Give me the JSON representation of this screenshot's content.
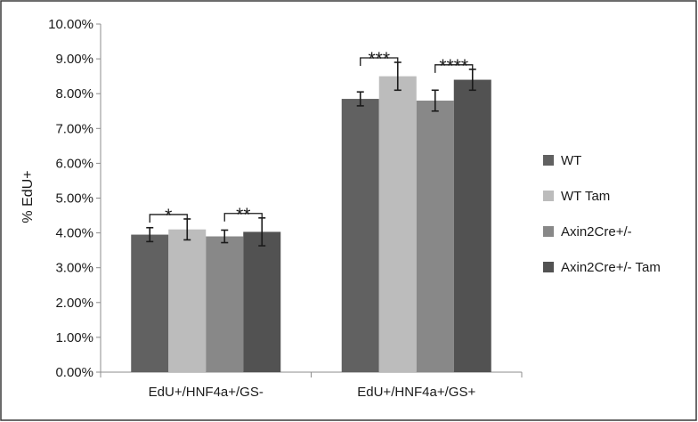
{
  "chart_data": {
    "type": "bar",
    "title": "",
    "xlabel": "",
    "ylabel": "% EdU+",
    "ylim": [
      0,
      10
    ],
    "y_unit": "%",
    "y_ticks": [
      "0.00%",
      "1.00%",
      "2.00%",
      "3.00%",
      "4.00%",
      "5.00%",
      "6.00%",
      "7.00%",
      "8.00%",
      "9.00%",
      "10.00%"
    ],
    "grid": false,
    "legend_position": "right",
    "categories": [
      "EdU+/HNF4a+/GS-",
      "EdU+/HNF4a+/GS+"
    ],
    "series": [
      {
        "name": "WT",
        "color": "#616161",
        "values": [
          3.95,
          7.85
        ],
        "error": [
          0.2,
          0.2
        ]
      },
      {
        "name": "WT Tam",
        "color": "#bcbcbc",
        "values": [
          4.1,
          8.5
        ],
        "error": [
          0.3,
          0.4
        ]
      },
      {
        "name": "Axin2Cre+/-",
        "color": "#888888",
        "values": [
          3.9,
          7.8
        ],
        "error": [
          0.18,
          0.3
        ]
      },
      {
        "name": "Axin2Cre+/- Tam",
        "color": "#525252",
        "values": [
          4.03,
          8.4
        ],
        "error": [
          0.4,
          0.3
        ]
      }
    ],
    "significance": [
      {
        "category": 0,
        "between": [
          0,
          1
        ],
        "label": "*"
      },
      {
        "category": 0,
        "between": [
          2,
          3
        ],
        "label": "**"
      },
      {
        "category": 1,
        "between": [
          0,
          1
        ],
        "label": "***"
      },
      {
        "category": 1,
        "between": [
          2,
          3
        ],
        "label": "****"
      }
    ]
  }
}
